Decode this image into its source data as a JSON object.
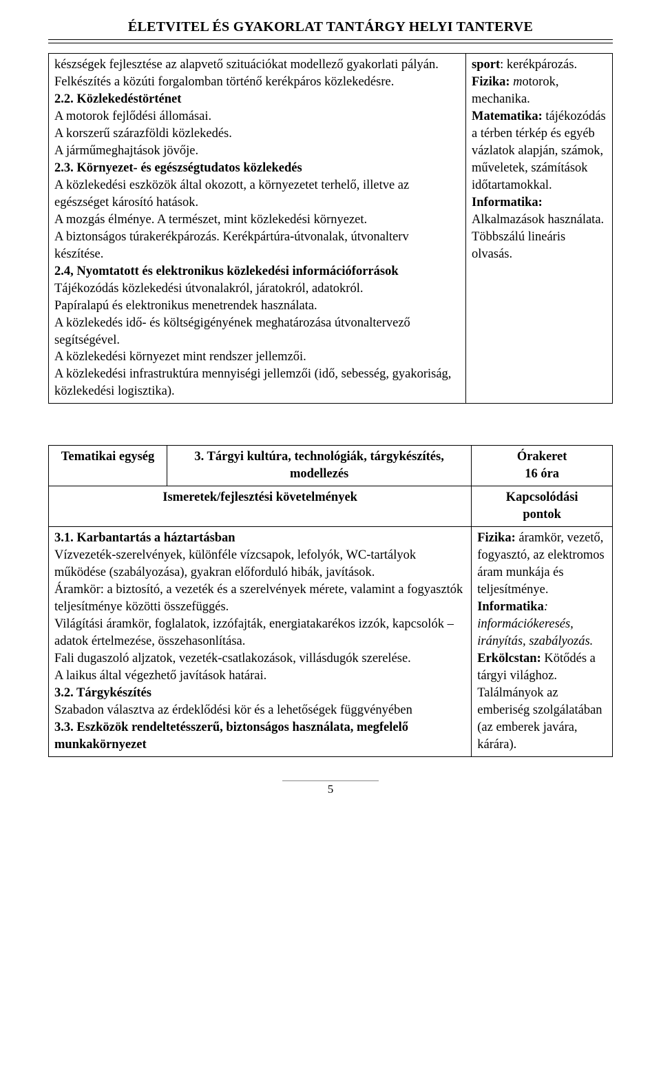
{
  "page": {
    "title": "ÉLETVITEL ÉS GYAKORLAT TANTÁRGY HELYI TANTERVE",
    "number": "5"
  },
  "fonts": {
    "body_size_pt": 14,
    "title_size_pt": 15
  },
  "colors": {
    "text": "#000000",
    "background": "#ffffff",
    "border": "#000000"
  },
  "table1": {
    "left": {
      "p1": "készségek fejlesztése az alapvető szituációkat modellező gyakorlati pályán.",
      "p2": "Felkészítés a közúti forgalomban történő kerékpáros közlekedésre.",
      "h22": "2.2. Közlekedéstörténet",
      "p3": "A motorok fejlődési állomásai.",
      "p4": "A korszerű szárazföldi közlekedés.",
      "p5": "A járműmeghajtások jövője.",
      "h23": "2.3. Környezet- és egészségtudatos közlekedés",
      "p6": "A közlekedési eszközök által okozott, a környezetet terhelő, illetve az egészséget károsító hatások.",
      "p7": "A mozgás élménye. A természet, mint közlekedési környezet.",
      "p8": "A biztonságos túrakerékpározás. Kerékpártúra-útvonalak, útvonalterv készítése.",
      "h24": "2.4, Nyomtatott és elektronikus közlekedési információforrások",
      "p9": "Tájékozódás közlekedési útvonalakról, járatokról, adatokról.",
      "p10": "Papíralapú és elektronikus menetrendek használata.",
      "p11": "A közlekedés idő- és költségigényének meghatározása útvonaltervező segítségével.",
      "p12": "A közlekedési környezet mint rendszer jellemzői.",
      "p13": "A közlekedési infrastruktúra mennyiségi jellemzői (idő, sebesség, gyakoriság, közlekedési logisztika)."
    },
    "right": {
      "l1a": "sport",
      "l1b": ": kerékpározás.",
      "l2a": "Fizika: ",
      "l2b": "m",
      "l2c": "otorok, mechanika.",
      "l3a": "Matematika:",
      "l3b": " tájékozódás a térben térkép és egyéb vázlatok alapján, számok, műveletek, számítások időtartamokkal.",
      "l4a": "Informatika:",
      "l4b": " Alkalmazások használata.",
      "l5": "Többszálú lineáris olvasás."
    }
  },
  "table2": {
    "header": {
      "c1": "Tematikai egység",
      "c2": "3. Tárgyi kultúra, technológiák, tárgykészítés, modellezés",
      "c3a": "Órakeret",
      "c3b": "16 óra"
    },
    "row2": {
      "left": "Ismeretek/fejlesztési követelmények",
      "right_a": "Kapcsolódási",
      "right_b": "pontok"
    },
    "left": {
      "h31": "3.1. Karbantartás a háztartásban",
      "p1": "Vízvezeték-szerelvények, különféle vízcsapok, lefolyók, WC-tartályok működése (szabályozása), gyakran előforduló hibák, javítások.",
      "p2": "Áramkör: a biztosító, a vezeték és a szerelvények mérete, valamint a fogyasztók teljesítménye közötti összefüggés.",
      "p3": "Világítási áramkör, foglalatok, izzófajták, energiatakarékos izzók, kapcsolók – adatok értelmezése, összehasonlítása.",
      "p4": "Fali dugaszoló aljzatok, vezeték-csatlakozások, villásdugók szerelése.",
      "p5": "A laikus által végezhető javítások határai.",
      "h32": "3.2.  Tárgykészítés",
      "p6": "Szabadon választva az érdeklődési kör és a lehetőségek függvényében",
      "h33": "3.3. Eszközök rendeltetésszerű, biztonságos használata, megfelelő munkakörnyezet"
    },
    "right": {
      "l1a": "Fizika:",
      "l1b": " áramkör, vezető, fogyasztó, az elektromos áram munkája és teljesítménye.",
      "l2a": "Informatika",
      "l2b": ": információkeresés, irányítás, szabályozás.",
      "l3a": "Erkölcstan:",
      "l3b": " Kötődés a tárgyi világhoz.",
      "l4": "Találmányok az emberiség szolgálatában (az emberek javára, kárára)."
    }
  }
}
